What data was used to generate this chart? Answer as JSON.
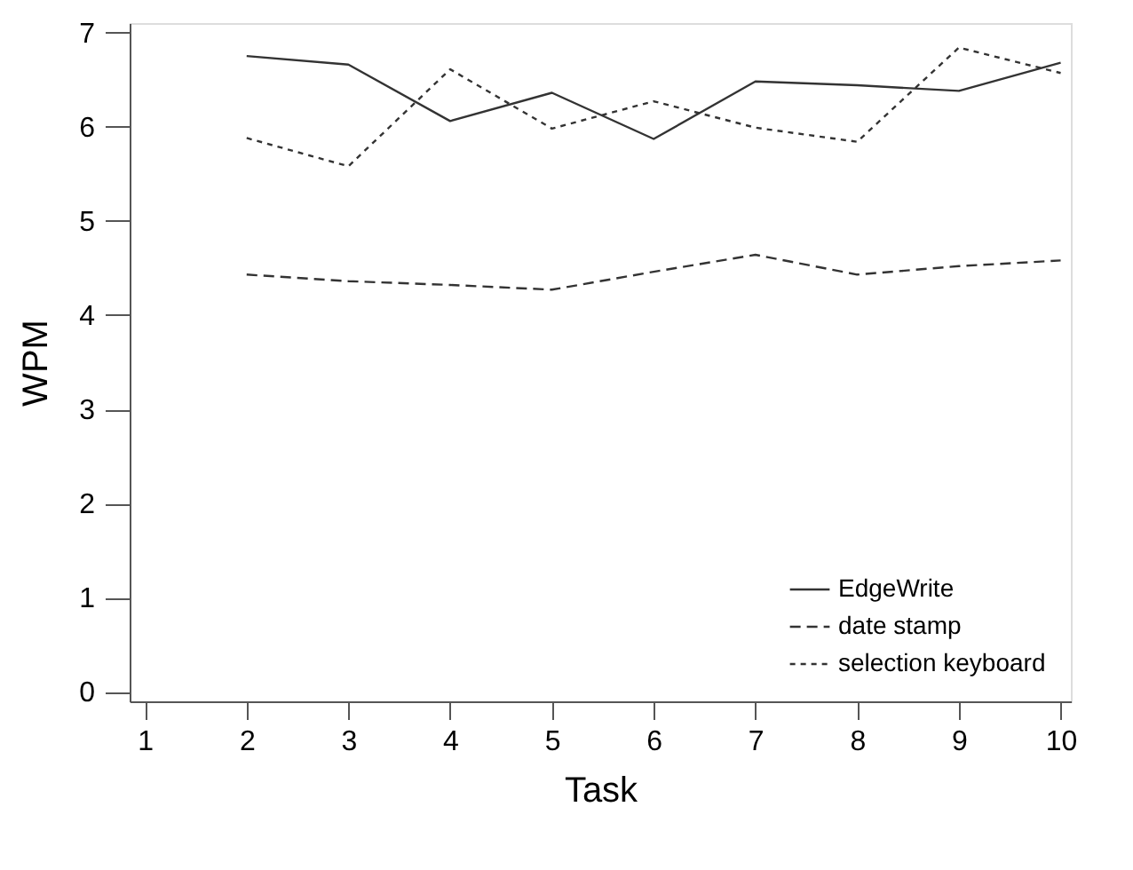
{
  "chart_data": {
    "type": "line",
    "xlabel": "Task",
    "ylabel": "WPM",
    "x": [
      2,
      3,
      4,
      5,
      6,
      7,
      8,
      9,
      10
    ],
    "series": [
      {
        "name": "EdgeWrite",
        "color": "#333333",
        "line_style": "solid",
        "values": [
          6.75,
          6.66,
          6.06,
          6.36,
          5.87,
          6.48,
          6.44,
          6.38,
          6.68
        ]
      },
      {
        "name": "date stamp",
        "color": "#333333",
        "line_style": "dashed",
        "values": [
          4.43,
          4.36,
          4.32,
          4.27,
          4.46,
          4.64,
          4.43,
          4.52,
          4.58
        ]
      },
      {
        "name": "selection keyboard",
        "color": "#333333",
        "line_style": "dotted",
        "values": [
          5.88,
          5.58,
          6.61,
          5.98,
          6.27,
          5.99,
          5.84,
          6.84,
          6.57
        ]
      }
    ],
    "xlim": [
      0.85,
      10.1
    ],
    "xticks": [
      1,
      2,
      3,
      4,
      5,
      6,
      7,
      8,
      9,
      10
    ],
    "ylim": [
      -0.1,
      7.1
    ],
    "yticks": [
      0,
      1,
      2,
      3,
      4,
      5,
      6,
      7
    ],
    "grid": false,
    "legend": "bottom right",
    "marker": "none"
  }
}
